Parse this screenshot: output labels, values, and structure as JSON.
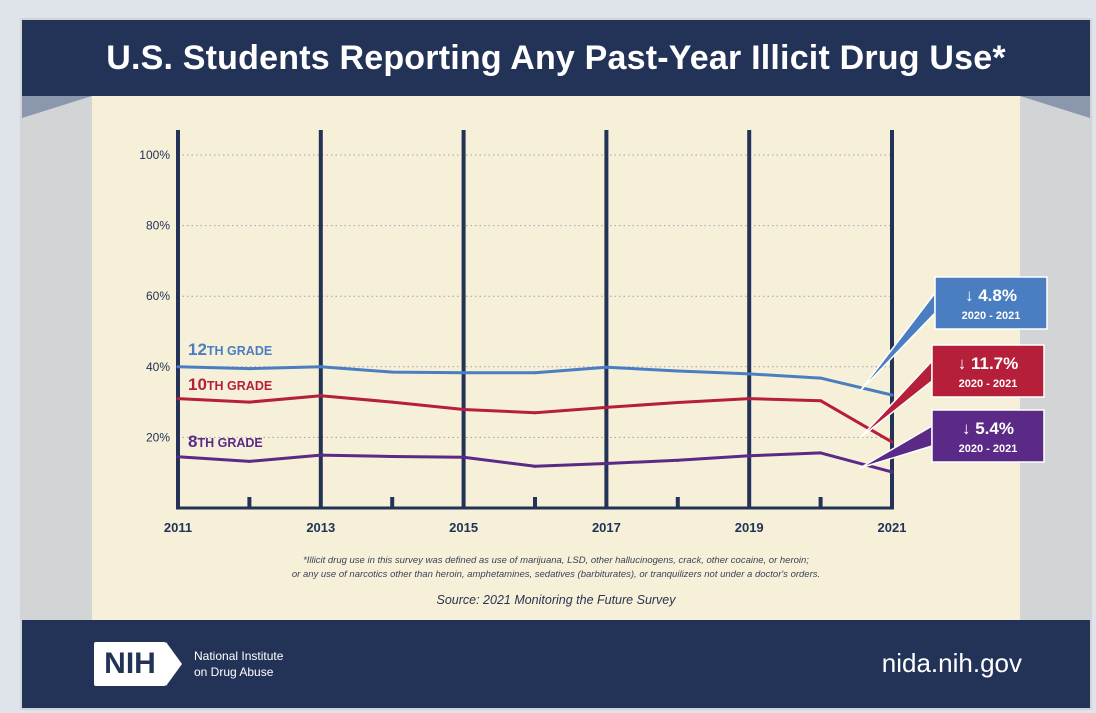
{
  "title": "U.S. Students Reporting Any Past-Year Illicit Drug Use*",
  "footnote": [
    "*Illicit drug use in this survey was defined as use of marijuana, LSD, other hallucinogens, crack, other cocaine, or heroin;",
    "or any use of narcotics other than heroin, amphetamines, sedatives (barbiturates), or tranquilizers not under a doctor's orders."
  ],
  "source": "Source: 2021 Monitoring the Future Survey",
  "footer": {
    "logo_text": "NIH",
    "org_line1": "National Institute",
    "org_line2": "on Drug Abuse",
    "website": "nida.nih.gov"
  },
  "colors": {
    "grade12": "#4a7ec0",
    "grade10": "#b51f3a",
    "grade8": "#5a2a86",
    "axis": "#233358",
    "paper": "#f7f0d8"
  },
  "chart_data": {
    "type": "line",
    "x": [
      2011,
      2012,
      2013,
      2014,
      2015,
      2016,
      2017,
      2018,
      2019,
      2020,
      2021
    ],
    "x_tick_labels": [
      "2011",
      "2013",
      "2015",
      "2017",
      "2019",
      "2021"
    ],
    "x_tick_values": [
      2011,
      2013,
      2015,
      2017,
      2019,
      2021
    ],
    "y_tick_labels": [
      "20%",
      "40%",
      "60%",
      "80%",
      "100%"
    ],
    "y_tick_values": [
      20,
      40,
      60,
      80,
      100
    ],
    "ylim": [
      0,
      100
    ],
    "xlim": [
      2011,
      2021
    ],
    "grid": true,
    "series": [
      {
        "name": "12TH GRADE",
        "color": "#4a7ec0",
        "values": [
          40.0,
          39.5,
          40.0,
          38.5,
          38.3,
          38.3,
          39.9,
          38.8,
          38.0,
          36.8,
          32.0
        ],
        "change_label": "↓ 4.8%",
        "change_period": "2020 - 2021"
      },
      {
        "name": "10TH GRADE",
        "color": "#b51f3a",
        "values": [
          31.0,
          30.0,
          31.8,
          30.0,
          27.9,
          27.0,
          28.5,
          29.9,
          31.0,
          30.4,
          18.7
        ],
        "change_label": "↓ 11.7%",
        "change_period": "2020 - 2021"
      },
      {
        "name": "8TH GRADE",
        "color": "#5a2a86",
        "values": [
          14.5,
          13.2,
          15.0,
          14.6,
          14.4,
          11.8,
          12.6,
          13.5,
          14.8,
          15.6,
          10.2
        ],
        "change_label": "↓ 5.4%",
        "change_period": "2020 - 2021"
      }
    ]
  }
}
